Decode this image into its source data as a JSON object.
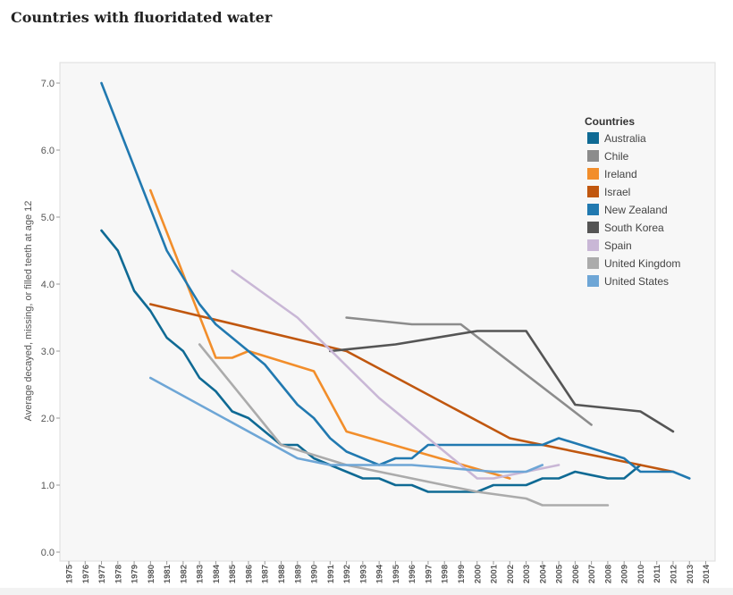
{
  "page": {
    "title": "Countries with fluoridated water"
  },
  "chart_data": {
    "type": "line",
    "title": "Countries with fluoridated water",
    "ylabel": "Average decayed, missing, or filled teeth at age 12",
    "xlabel": "",
    "ylim": [
      0,
      7.3
    ],
    "yticks": [
      "0.0",
      "1.0",
      "2.0",
      "3.0",
      "4.0",
      "5.0",
      "6.0",
      "7.0"
    ],
    "x_categories": [
      "1975",
      "1976",
      "1977",
      "1978",
      "1979",
      "1980",
      "1981",
      "1982",
      "1983",
      "1984",
      "1985",
      "1986",
      "1987",
      "1988",
      "1989",
      "1990",
      "1991",
      "1992",
      "1993",
      "1994",
      "1995",
      "1996",
      "1997",
      "1998",
      "1999",
      "2000",
      "2001",
      "2002",
      "2003",
      "2004",
      "2005",
      "2006",
      "2007",
      "2008",
      "2009",
      "2010",
      "2011",
      "2012",
      "2013",
      "2014"
    ],
    "grid": false,
    "legend_title": "Countries",
    "legend_position": "top-right",
    "series": [
      {
        "name": "Australia",
        "color": "#0f6a94",
        "points": [
          [
            1977,
            4.8
          ],
          [
            1978,
            4.5
          ],
          [
            1979,
            3.9
          ],
          [
            1980,
            3.6
          ],
          [
            1981,
            3.2
          ],
          [
            1982,
            3.0
          ],
          [
            1983,
            2.6
          ],
          [
            1984,
            2.4
          ],
          [
            1985,
            2.1
          ],
          [
            1986,
            2.0
          ],
          [
            1987,
            1.8
          ],
          [
            1988,
            1.6
          ],
          [
            1989,
            1.6
          ],
          [
            1990,
            1.4
          ],
          [
            1991,
            1.3
          ],
          [
            1992,
            1.2
          ],
          [
            1993,
            1.1
          ],
          [
            1994,
            1.1
          ],
          [
            1995,
            1.0
          ],
          [
            1996,
            1.0
          ],
          [
            1997,
            0.9
          ],
          [
            1998,
            0.9
          ],
          [
            1999,
            0.9
          ],
          [
            2000,
            0.9
          ],
          [
            2001,
            1.0
          ],
          [
            2002,
            1.0
          ],
          [
            2003,
            1.0
          ],
          [
            2004,
            1.1
          ],
          [
            2005,
            1.1
          ],
          [
            2006,
            1.2
          ],
          [
            2007,
            1.15
          ],
          [
            2008,
            1.1
          ],
          [
            2009,
            1.1
          ],
          [
            2010,
            1.3
          ]
        ]
      },
      {
        "name": "Chile",
        "color": "#8c8c8c",
        "points": [
          [
            1992,
            3.5
          ],
          [
            1996,
            3.4
          ],
          [
            1999,
            3.4
          ],
          [
            2007,
            1.9
          ]
        ]
      },
      {
        "name": "Ireland",
        "color": "#f28e2b",
        "points": [
          [
            1980,
            5.4
          ],
          [
            1984,
            2.9
          ],
          [
            1985,
            2.9
          ],
          [
            1986,
            3.0
          ],
          [
            1990,
            2.7
          ],
          [
            1992,
            1.8
          ],
          [
            2002,
            1.1
          ]
        ]
      },
      {
        "name": "Israel",
        "color": "#c0570f",
        "points": [
          [
            1980,
            3.7
          ],
          [
            1992,
            3.0
          ],
          [
            2002,
            1.7
          ],
          [
            2012,
            1.2
          ]
        ]
      },
      {
        "name": "New Zealand",
        "color": "#2179b0",
        "points": [
          [
            1977,
            7.0
          ],
          [
            1981,
            4.5
          ],
          [
            1983,
            3.7
          ],
          [
            1984,
            3.4
          ],
          [
            1987,
            2.8
          ],
          [
            1989,
            2.2
          ],
          [
            1990,
            2.0
          ],
          [
            1991,
            1.7
          ],
          [
            1992,
            1.5
          ],
          [
            1994,
            1.3
          ],
          [
            1995,
            1.4
          ],
          [
            1996,
            1.4
          ],
          [
            1997,
            1.6
          ],
          [
            1998,
            1.6
          ],
          [
            2000,
            1.6
          ],
          [
            2004,
            1.6
          ],
          [
            2005,
            1.7
          ],
          [
            2009,
            1.4
          ],
          [
            2010,
            1.2
          ],
          [
            2012,
            1.2
          ],
          [
            2013,
            1.1
          ]
        ]
      },
      {
        "name": "South Korea",
        "color": "#555555",
        "points": [
          [
            1991,
            3.0
          ],
          [
            1995,
            3.1
          ],
          [
            2000,
            3.3
          ],
          [
            2003,
            3.3
          ],
          [
            2006,
            2.2
          ],
          [
            2010,
            2.1
          ],
          [
            2012,
            1.8
          ]
        ]
      },
      {
        "name": "Spain",
        "color": "#c9b7d6",
        "points": [
          [
            1985,
            4.2
          ],
          [
            1989,
            3.5
          ],
          [
            1994,
            2.3
          ],
          [
            2000,
            1.1
          ],
          [
            2001,
            1.1
          ],
          [
            2005,
            1.3
          ]
        ]
      },
      {
        "name": "United Kingdom",
        "color": "#ababab",
        "points": [
          [
            1983,
            3.1
          ],
          [
            1988,
            1.6
          ],
          [
            1992,
            1.3
          ],
          [
            1996,
            1.1
          ],
          [
            2000,
            0.9
          ],
          [
            2003,
            0.8
          ],
          [
            2004,
            0.7
          ],
          [
            2008,
            0.7
          ]
        ]
      },
      {
        "name": "United States",
        "color": "#6ea6d6",
        "points": [
          [
            1980,
            2.6
          ],
          [
            1989,
            1.4
          ],
          [
            1991,
            1.3
          ],
          [
            1996,
            1.3
          ],
          [
            2001,
            1.2
          ],
          [
            2003,
            1.2
          ],
          [
            2004,
            1.3
          ]
        ]
      }
    ]
  }
}
